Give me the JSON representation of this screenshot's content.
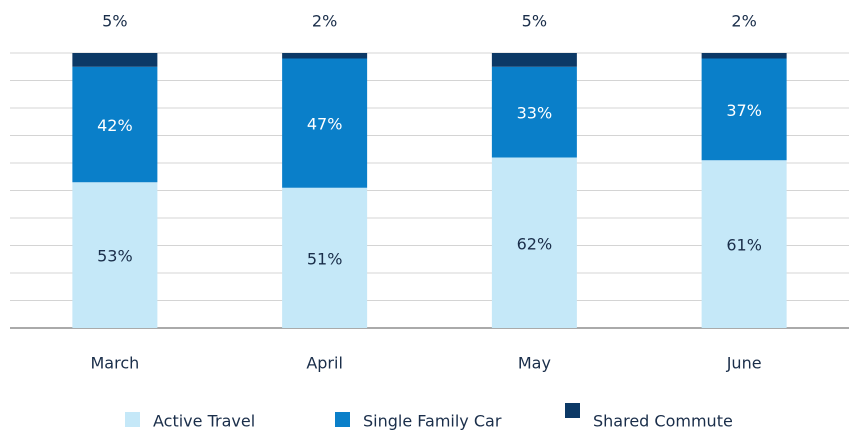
{
  "chart_data": {
    "type": "stacked-bar",
    "categories": [
      "March",
      "April",
      "May",
      "June"
    ],
    "series": [
      {
        "name": "Active Travel",
        "color": "#c5e8f8",
        "values": [
          53,
          51,
          62,
          61
        ],
        "value_labels": [
          "53%",
          "51%",
          "62%",
          "61%"
        ]
      },
      {
        "name": "Single Family Car",
        "color": "#0a7fc9",
        "values": [
          42,
          47,
          33,
          37
        ],
        "value_labels": [
          "42%",
          "47%",
          "33%",
          "37%"
        ]
      },
      {
        "name": "Shared Commute",
        "color": "#0c3966",
        "values": [
          5,
          2,
          5,
          2
        ],
        "value_labels": [
          "5%",
          "2%",
          "5%",
          "2%"
        ]
      }
    ],
    "ylim": [
      0,
      100
    ],
    "yticks": [
      0,
      10,
      20,
      30,
      40,
      50,
      60,
      70,
      80,
      90,
      100
    ],
    "grid": true,
    "legend": "bottom"
  }
}
